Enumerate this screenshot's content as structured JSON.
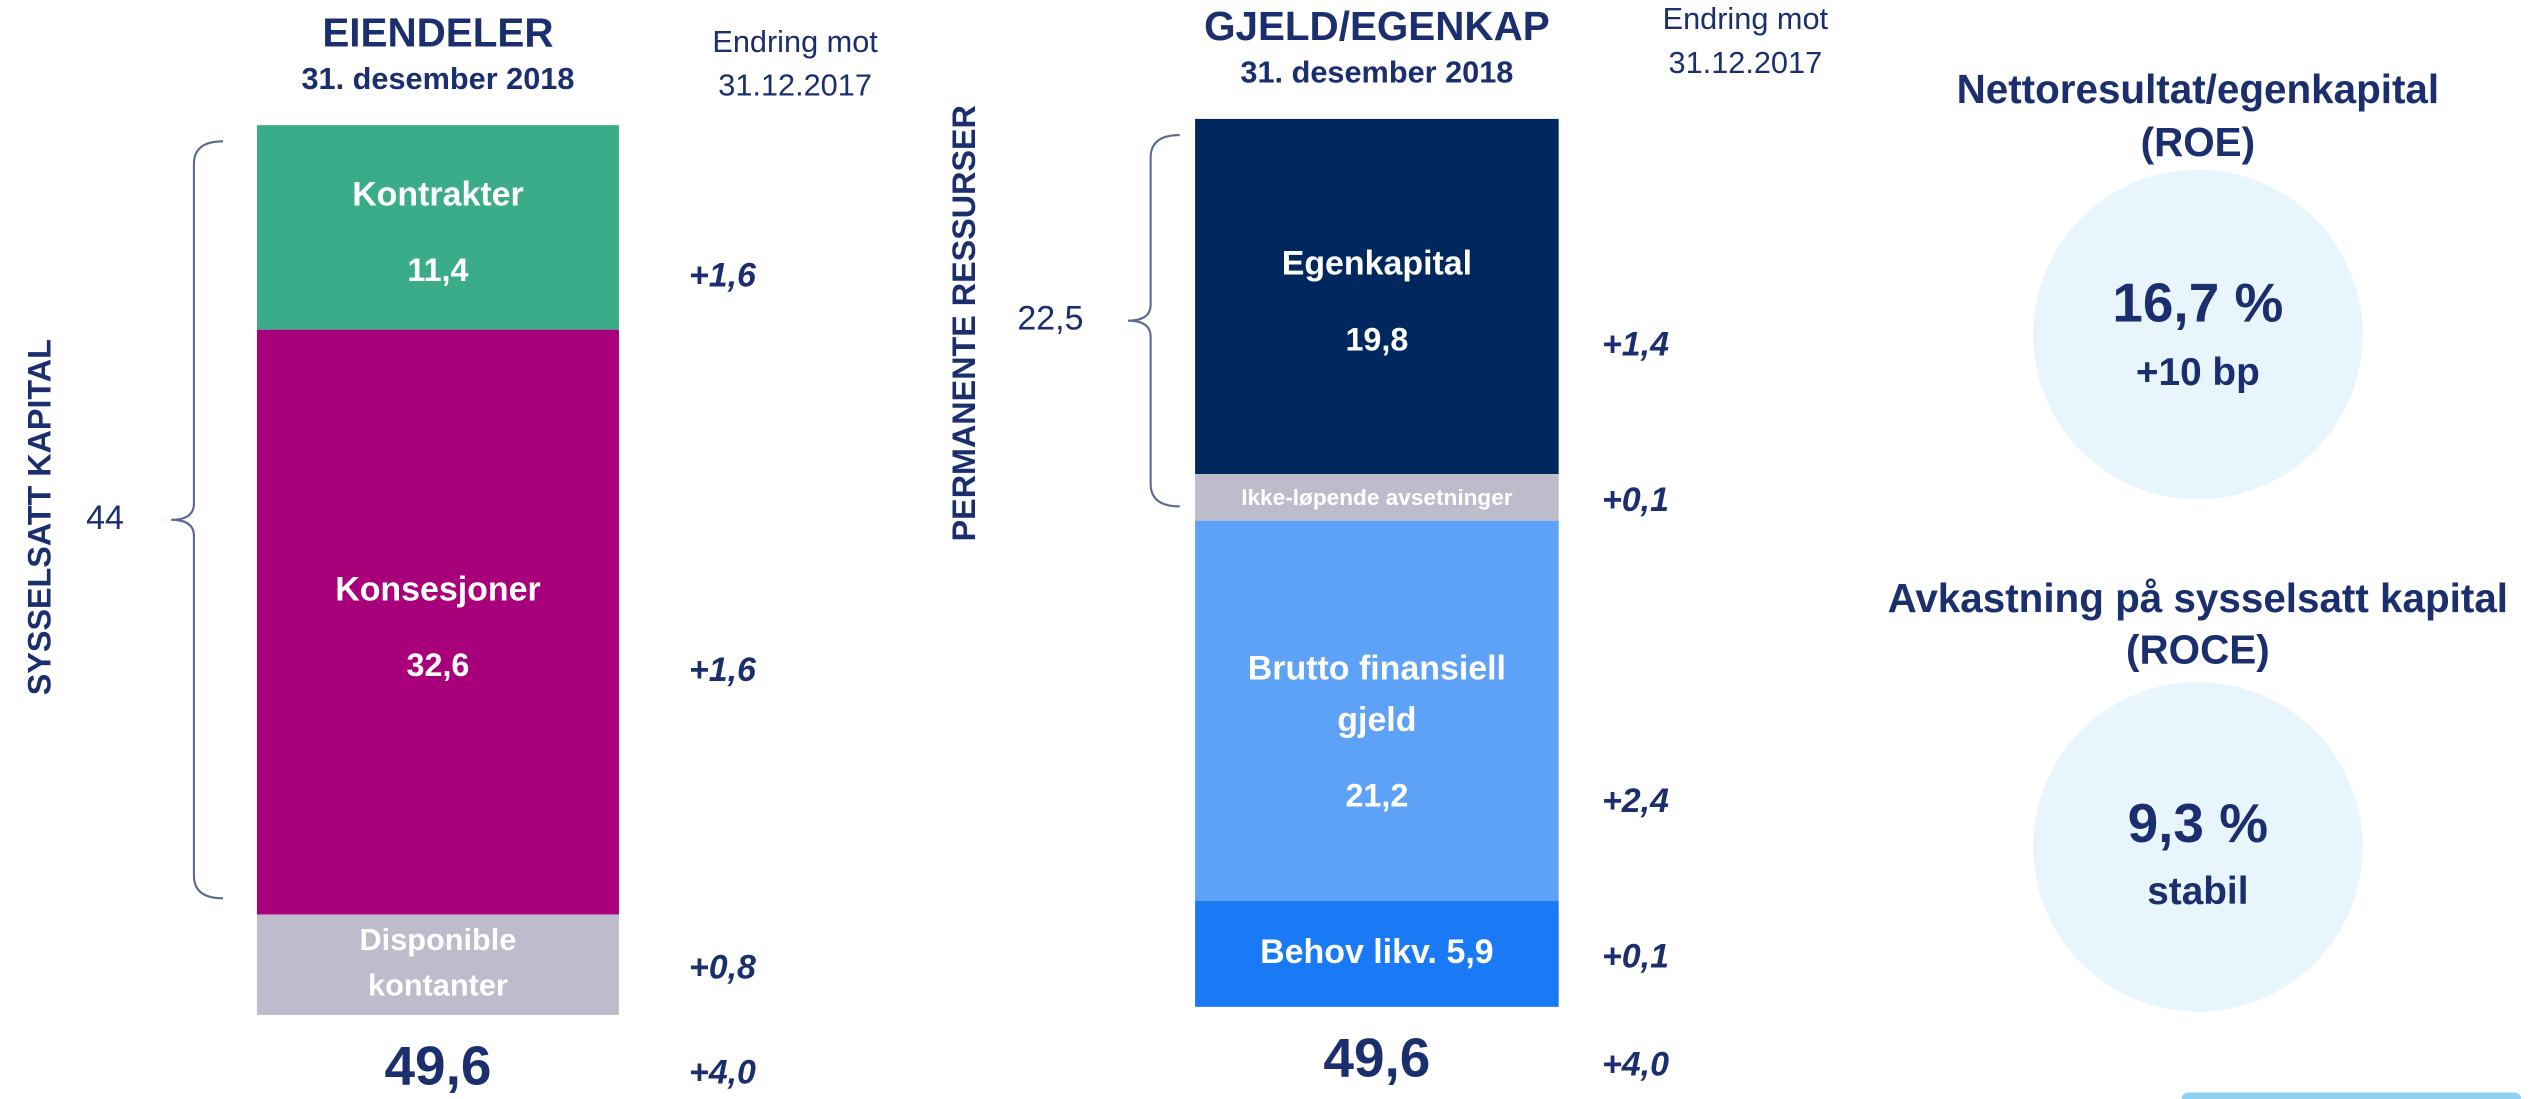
{
  "chart_data": [
    {
      "type": "stacked_bar",
      "title": "EIENDELER",
      "subtitle": "31. desember 2018",
      "change_header": [
        "Endring mot",
        "31.12.2017"
      ],
      "side_label": "SYSSELSATT KAPITAL",
      "bracket_value": 44,
      "segments": [
        {
          "name": [
            "Kontrakter"
          ],
          "color": "#3aac8a",
          "value": 11.4,
          "value_label": "11,4",
          "change": "+1,6"
        },
        {
          "name": [
            "Konsesjoner"
          ],
          "color": "#a8007a",
          "value": 32.6,
          "value_label": "32,6",
          "change": "+1,6"
        },
        {
          "name": [
            "Disponible",
            "kontanter"
          ],
          "color": "#bdbccd",
          "value": 5.6,
          "change": "+0,8"
        }
      ],
      "total": 49.6,
      "total_label": "49,6",
      "total_change": "+4,0"
    },
    {
      "type": "stacked_bar",
      "title": "GJELD/EGENKAP",
      "subtitle": "31. desember 2018",
      "change_header": [
        "Endring mot",
        "31.12.2017"
      ],
      "side_label": "PERMANENTE RESSURSER",
      "bracket_value": 22.5,
      "bracket_label": "22,5",
      "segments": [
        {
          "name": [
            "Egenkapital"
          ],
          "color": "#00275e",
          "value": 19.8,
          "value_label": "19,8",
          "change": "+1,4"
        },
        {
          "name": [
            "Ikke-løpende avsetninger"
          ],
          "color": "#bdbccd",
          "value": 2.6,
          "value_label": "2,6",
          "change": "+0,1"
        },
        {
          "name": [
            "Brutto finansiell",
            "gjeld"
          ],
          "color": "#5ea2f7",
          "value": 21.2,
          "value_label": "21,2",
          "change": "+2,4"
        },
        {
          "name": [
            "Behov likv."
          ],
          "color": "#1a7af5",
          "value": 5.9,
          "value_label": "5,9",
          "change": "+0,1"
        }
      ],
      "total": 49.6,
      "total_label": "49,6",
      "total_change": "+4,0"
    }
  ],
  "kpis": [
    {
      "title": [
        "Nettoresultat/egenkapital",
        "(ROE)"
      ],
      "value": "16,7 %",
      "note": "+10 bp"
    },
    {
      "title": [
        "Avkastning på sysselsatt kapital",
        "(ROCE)"
      ],
      "value": "9,3 %",
      "note": "stabil"
    }
  ]
}
